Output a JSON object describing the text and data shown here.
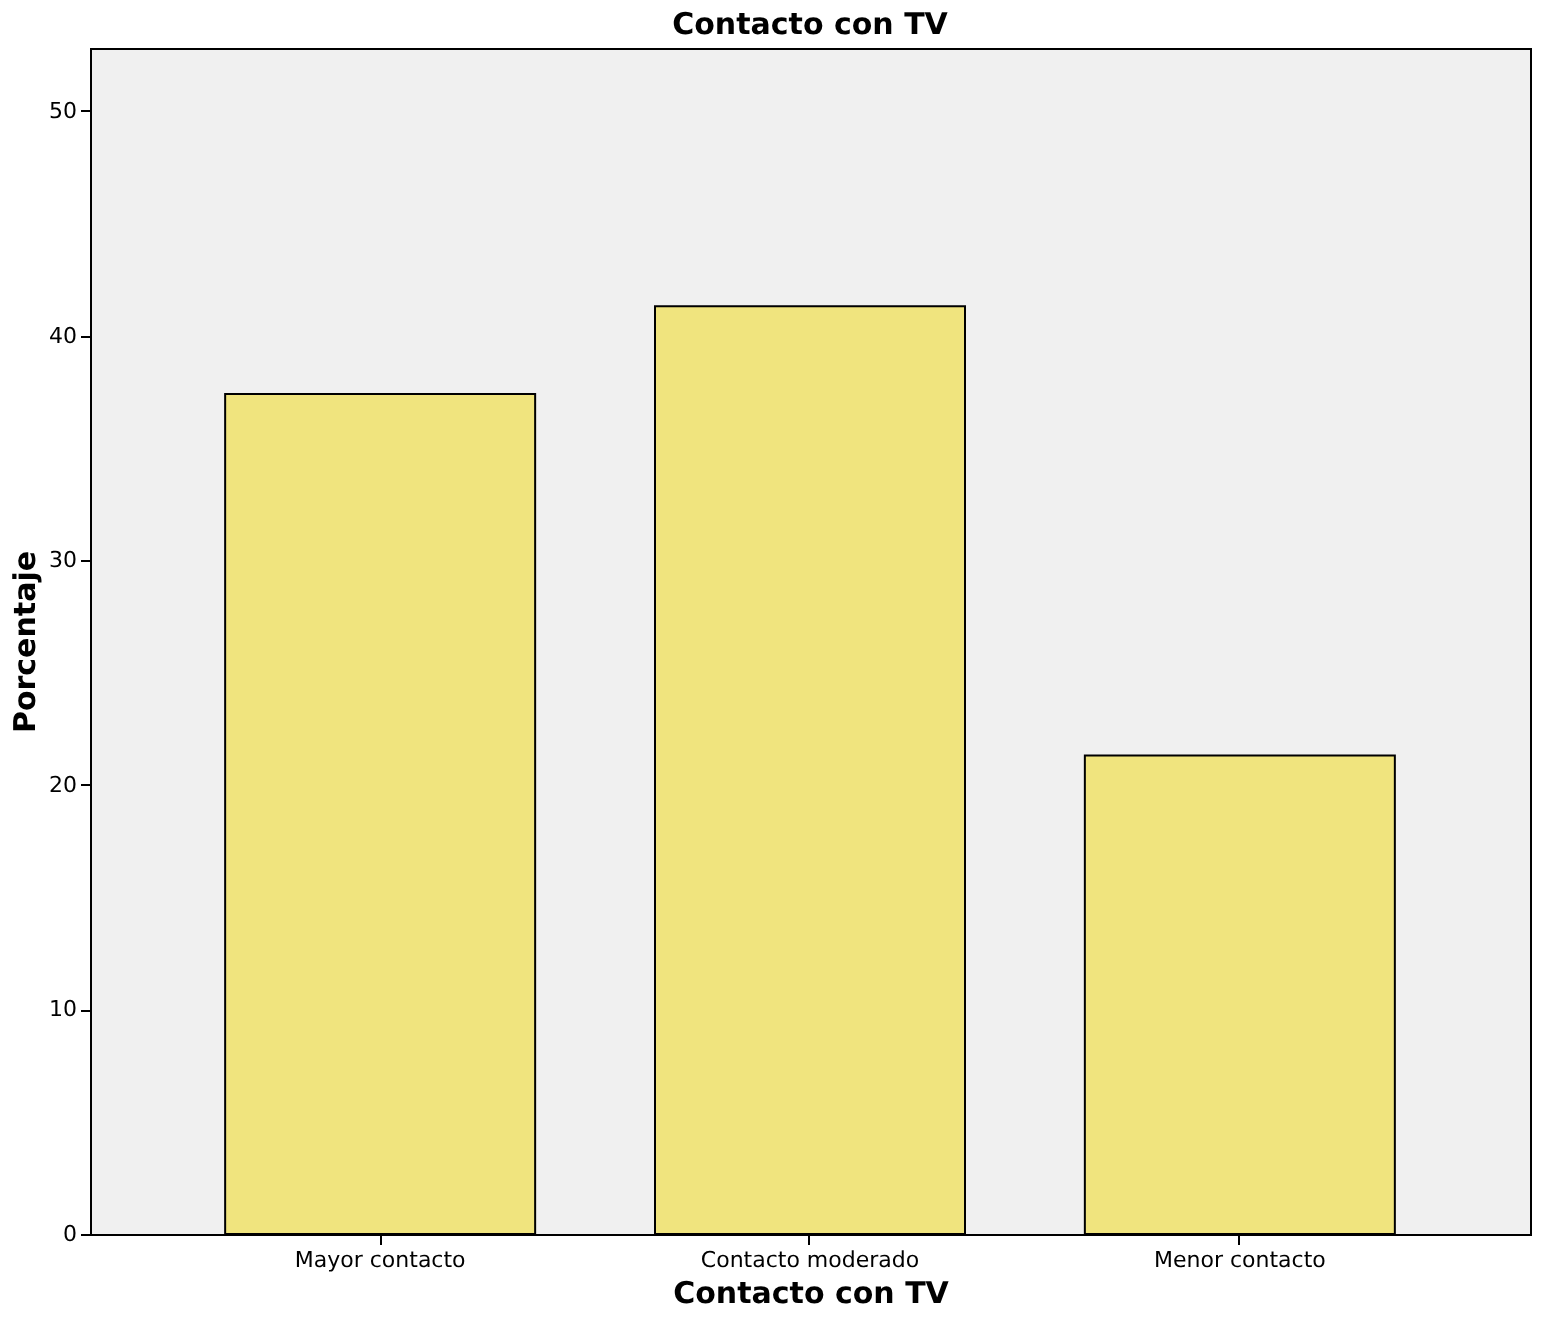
{
  "chart_data": {
    "type": "bar",
    "title": "Contacto con TV",
    "xlabel": "Contacto con TV",
    "ylabel": "Porcentaje",
    "categories": [
      "Mayor contacto",
      "Contacto moderado",
      "Menor contacto"
    ],
    "values": [
      37.4,
      41.3,
      21.3
    ],
    "color": "#f0e47e",
    "ylim": [
      0,
      52.8
    ],
    "yticks": [
      0,
      10,
      20,
      30,
      40,
      50
    ],
    "grid": false
  }
}
